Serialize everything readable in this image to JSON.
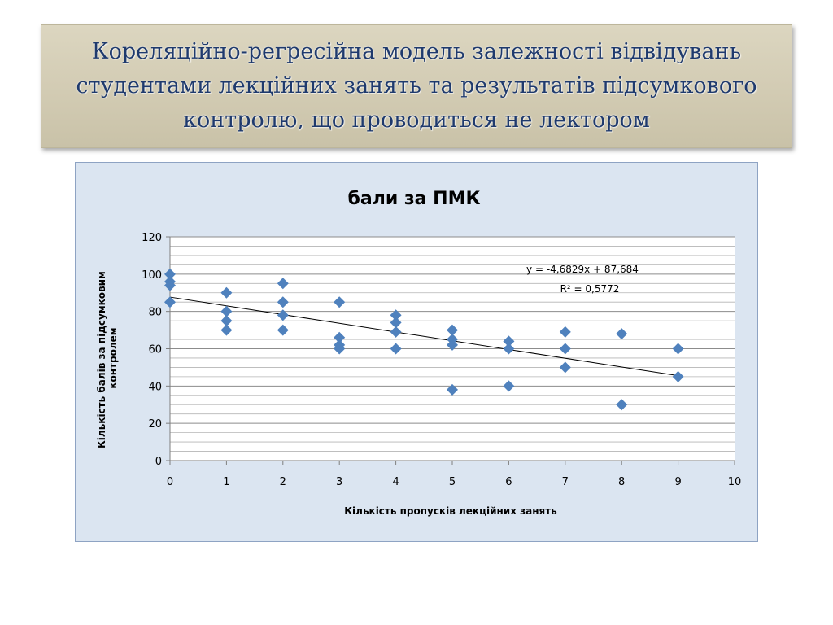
{
  "slide": {
    "title": "Кореляційно-регресійна модель залежності відвідувань студентами лекційних занять та результатів підсумкового контролю, що проводиться не лектором"
  },
  "colors": {
    "banner": "#d2cbb3",
    "title_text": "#1f3a6d",
    "chart_bg": "#dbe5f1",
    "marker": "#4f81bd",
    "trendline": "#000000"
  },
  "chart_data": {
    "type": "scatter",
    "title": "бали за ПМК",
    "xlabel": "Кількість пропусків лекційних занять",
    "ylabel_lines": [
      "Кількість балів за підсумковим",
      "контролем"
    ],
    "xlim": [
      0,
      10
    ],
    "ylim": [
      0,
      120
    ],
    "x_ticks": [
      "0",
      "1",
      "2",
      "3",
      "4",
      "5",
      "6",
      "7",
      "8",
      "9",
      "10"
    ],
    "y_ticks": [
      "0",
      "20",
      "40",
      "60",
      "80",
      "100",
      "120"
    ],
    "grid": true,
    "minor_grid_step": 4,
    "marker": "diamond",
    "points": [
      {
        "x": 0,
        "y": 100
      },
      {
        "x": 0,
        "y": 96
      },
      {
        "x": 0,
        "y": 94
      },
      {
        "x": 0,
        "y": 85
      },
      {
        "x": 1,
        "y": 90
      },
      {
        "x": 1,
        "y": 80
      },
      {
        "x": 1,
        "y": 75
      },
      {
        "x": 1,
        "y": 70
      },
      {
        "x": 2,
        "y": 95
      },
      {
        "x": 2,
        "y": 85
      },
      {
        "x": 2,
        "y": 78
      },
      {
        "x": 2,
        "y": 70
      },
      {
        "x": 3,
        "y": 85
      },
      {
        "x": 3,
        "y": 66
      },
      {
        "x": 3,
        "y": 62
      },
      {
        "x": 3,
        "y": 60
      },
      {
        "x": 4,
        "y": 78
      },
      {
        "x": 4,
        "y": 74
      },
      {
        "x": 4,
        "y": 69
      },
      {
        "x": 4,
        "y": 60
      },
      {
        "x": 5,
        "y": 70
      },
      {
        "x": 5,
        "y": 65
      },
      {
        "x": 5,
        "y": 62
      },
      {
        "x": 5,
        "y": 38
      },
      {
        "x": 6,
        "y": 64
      },
      {
        "x": 6,
        "y": 60
      },
      {
        "x": 6,
        "y": 40
      },
      {
        "x": 7,
        "y": 69
      },
      {
        "x": 7,
        "y": 60
      },
      {
        "x": 7,
        "y": 50
      },
      {
        "x": 8,
        "y": 68
      },
      {
        "x": 8,
        "y": 30
      },
      {
        "x": 9,
        "y": 60
      },
      {
        "x": 9,
        "y": 45
      }
    ],
    "trendline": {
      "slope": -4.6829,
      "intercept": 87.684,
      "x_from": 0,
      "x_to": 9
    },
    "equation_text": "y = -4,6829x + 87,684",
    "r2_text": "R² = 0,5772"
  }
}
